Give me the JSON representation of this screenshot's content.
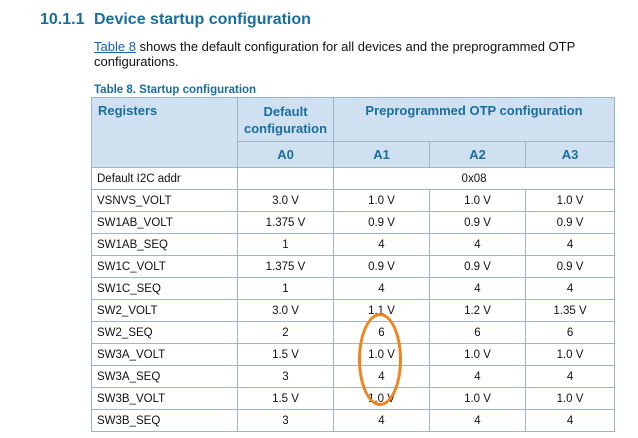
{
  "section": {
    "number": "10.1.1",
    "title": "Device startup configuration"
  },
  "intro": {
    "link": "Table 8",
    "text": " shows the default configuration for all devices and the preprogrammed OTP configurations."
  },
  "caption": "Table 8.  Startup configuration",
  "table": {
    "headers": {
      "registers": "Registers",
      "default": "Default configuration",
      "otp": "Preprogrammed OTP configuration"
    },
    "sub_headers": [
      "A0",
      "A1",
      "A2",
      "A3"
    ],
    "i2c_row": {
      "register": "Default I2C addr",
      "value": "0x08"
    },
    "rows": [
      {
        "register": "VSNVS_VOLT",
        "a0": "3.0 V",
        "a1": "1.0 V",
        "a2": "1.0 V",
        "a3": "1.0 V"
      },
      {
        "register": "SW1AB_VOLT",
        "a0": "1.375 V",
        "a1": "0.9 V",
        "a2": "0.9 V",
        "a3": "0.9 V"
      },
      {
        "register": "SW1AB_SEQ",
        "a0": "1",
        "a1": "4",
        "a2": "4",
        "a3": "4"
      },
      {
        "register": "SW1C_VOLT",
        "a0": "1.375 V",
        "a1": "0.9 V",
        "a2": "0.9 V",
        "a3": "0.9 V"
      },
      {
        "register": "SW1C_SEQ",
        "a0": "1",
        "a1": "4",
        "a2": "4",
        "a3": "4"
      },
      {
        "register": "SW2_VOLT",
        "a0": "3.0 V",
        "a1": "1.1 V",
        "a2": "1.2 V",
        "a3": "1.35 V"
      },
      {
        "register": "SW2_SEQ",
        "a0": "2",
        "a1": "6",
        "a2": "6",
        "a3": "6"
      },
      {
        "register": "SW3A_VOLT",
        "a0": "1.5 V",
        "a1": "1.0 V",
        "a2": "1.0 V",
        "a3": "1.0 V"
      },
      {
        "register": "SW3A_SEQ",
        "a0": "3",
        "a1": "4",
        "a2": "4",
        "a3": "4"
      },
      {
        "register": "SW3B_VOLT",
        "a0": "1.5 V",
        "a1": "1.0 V",
        "a2": "1.0 V",
        "a3": "1.0 V"
      },
      {
        "register": "SW3B_SEQ",
        "a0": "3",
        "a1": "4",
        "a2": "4",
        "a3": "4"
      }
    ]
  },
  "annotation": {
    "shape": "ellipse",
    "color": "#f0831e"
  }
}
